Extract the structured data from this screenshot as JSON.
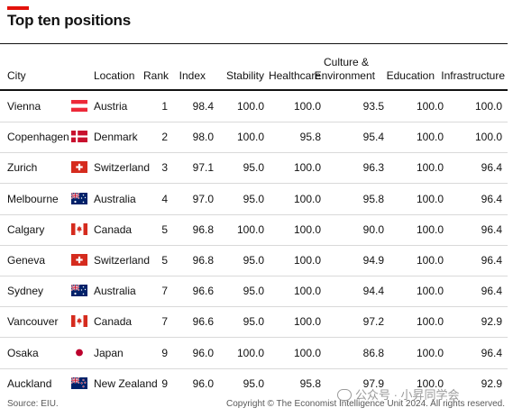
{
  "title": "Top ten positions",
  "chart_data": {
    "type": "table",
    "title": "Top ten positions",
    "columns": [
      "City",
      "Location",
      "Rank",
      "Index",
      "Stability",
      "Healthcare",
      "Culture & Environment",
      "Education",
      "Infrastructure"
    ],
    "culture_header_lines": [
      "Culture &",
      "Environment"
    ],
    "rows": [
      {
        "city": "Vienna",
        "flag": "austria-flag",
        "location": "Austria",
        "rank": "1",
        "index": "98.4",
        "stability": "100.0",
        "healthcare": "100.0",
        "culture": "93.5",
        "education": "100.0",
        "infrastructure": "100.0"
      },
      {
        "city": "Copenhagen",
        "flag": "denmark-flag",
        "location": "Denmark",
        "rank": "2",
        "index": "98.0",
        "stability": "100.0",
        "healthcare": "95.8",
        "culture": "95.4",
        "education": "100.0",
        "infrastructure": "100.0"
      },
      {
        "city": "Zurich",
        "flag": "switzerland-flag",
        "location": "Switzerland",
        "rank": "3",
        "index": "97.1",
        "stability": "95.0",
        "healthcare": "100.0",
        "culture": "96.3",
        "education": "100.0",
        "infrastructure": "96.4"
      },
      {
        "city": "Melbourne",
        "flag": "australia-flag",
        "location": "Australia",
        "rank": "4",
        "index": "97.0",
        "stability": "95.0",
        "healthcare": "100.0",
        "culture": "95.8",
        "education": "100.0",
        "infrastructure": "96.4"
      },
      {
        "city": "Calgary",
        "flag": "canada-flag",
        "location": "Canada",
        "rank": "5",
        "index": "96.8",
        "stability": "100.0",
        "healthcare": "100.0",
        "culture": "90.0",
        "education": "100.0",
        "infrastructure": "96.4"
      },
      {
        "city": "Geneva",
        "flag": "switzerland-flag",
        "location": "Switzerland",
        "rank": "5",
        "index": "96.8",
        "stability": "95.0",
        "healthcare": "100.0",
        "culture": "94.9",
        "education": "100.0",
        "infrastructure": "96.4"
      },
      {
        "city": "Sydney",
        "flag": "australia-flag",
        "location": "Australia",
        "rank": "7",
        "index": "96.6",
        "stability": "95.0",
        "healthcare": "100.0",
        "culture": "94.4",
        "education": "100.0",
        "infrastructure": "96.4"
      },
      {
        "city": "Vancouver",
        "flag": "canada-flag",
        "location": "Canada",
        "rank": "7",
        "index": "96.6",
        "stability": "95.0",
        "healthcare": "100.0",
        "culture": "97.2",
        "education": "100.0",
        "infrastructure": "92.9"
      },
      {
        "city": "Osaka",
        "flag": "japan-flag",
        "location": "Japan",
        "rank": "9",
        "index": "96.0",
        "stability": "100.0",
        "healthcare": "100.0",
        "culture": "86.8",
        "education": "100.0",
        "infrastructure": "96.4"
      },
      {
        "city": "Auckland",
        "flag": "new-zealand-flag",
        "location": "New Zealand",
        "rank": "9",
        "index": "96.0",
        "stability": "95.0",
        "healthcare": "95.8",
        "culture": "97.9",
        "education": "100.0",
        "infrastructure": "92.9"
      }
    ]
  },
  "footer": {
    "source": "Source: EIU.",
    "copyright": "Copyright © The Economist Intelligence Unit 2024. All rights reserved."
  },
  "watermark": "公众号 · 小昇同学会",
  "colors": {
    "accent_red": "#e3120b",
    "rule": "#121212",
    "row_divider": "#d9d9d9"
  }
}
